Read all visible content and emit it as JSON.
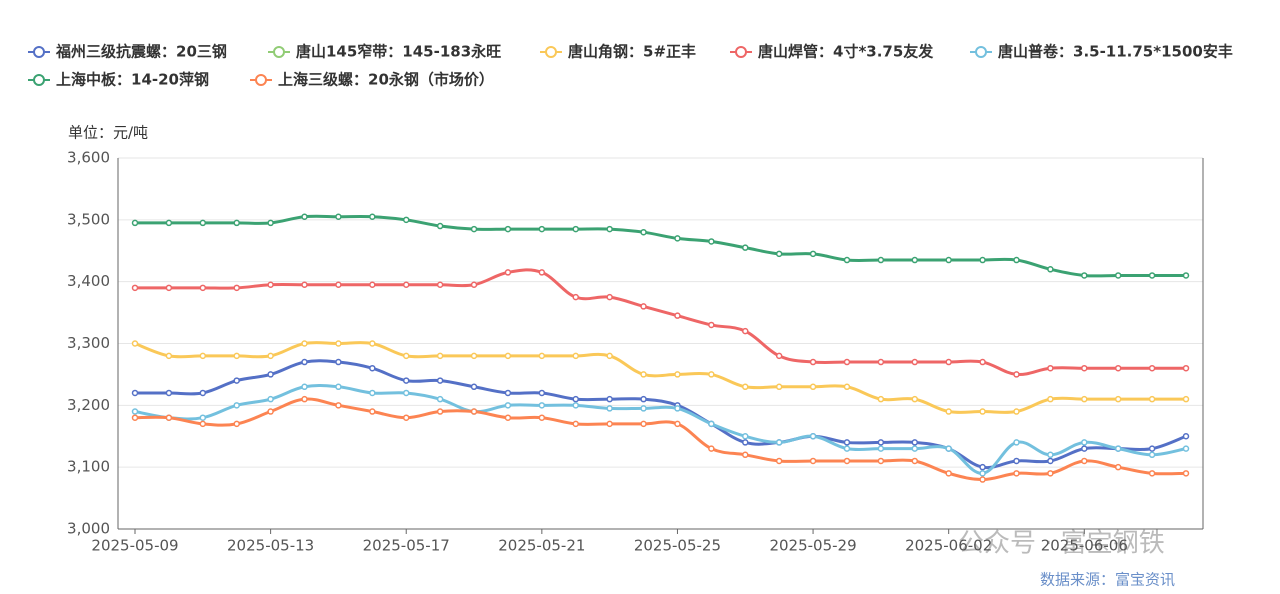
{
  "chart_data": {
    "type": "line",
    "y_axis_label": "单位：元/吨",
    "watermark": "公众号 · 富宝钢铁",
    "source": "数据来源：富宝资讯",
    "categories": [
      "2025-05-09",
      null,
      null,
      null,
      "2025-05-13",
      null,
      null,
      null,
      "2025-05-17",
      null,
      null,
      null,
      "2025-05-21",
      null,
      null,
      null,
      "2025-05-25",
      null,
      null,
      null,
      "2025-05-29",
      null,
      null,
      null,
      "2025-06-02",
      null,
      null,
      null,
      "2025-06-06",
      null,
      null,
      null
    ],
    "ylim": [
      3000,
      3600
    ],
    "yticks": [
      {
        "value": 3000,
        "label": "3,000"
      },
      {
        "value": 3100,
        "label": "3,100"
      },
      {
        "value": 3200,
        "label": "3,200"
      },
      {
        "value": 3300,
        "label": "3,300"
      },
      {
        "value": 3400,
        "label": "3,400"
      },
      {
        "value": 3500,
        "label": "3,500"
      },
      {
        "value": 3600,
        "label": "3,600"
      }
    ],
    "grid": true,
    "series": [
      {
        "name": "福州三级抗震螺：20三钢",
        "color": "#5470c6",
        "values": [
          3220,
          3220,
          3220,
          3240,
          3250,
          3270,
          3270,
          3260,
          3240,
          3240,
          3230,
          3220,
          3220,
          3210,
          3210,
          3210,
          3200,
          3170,
          3140,
          3140,
          3150,
          3140,
          3140,
          3140,
          3130,
          3100,
          3110,
          3110,
          3130,
          3130,
          3130,
          3150
        ]
      },
      {
        "name": "唐山145窄带：145-183永旺",
        "color": "#91cc75",
        "values": [
          null,
          null,
          null,
          null,
          null,
          null,
          null,
          null,
          null,
          null,
          null,
          null,
          null,
          null,
          null,
          null,
          null,
          null,
          null,
          null,
          null,
          null,
          null,
          null,
          null,
          null,
          null,
          null,
          null,
          null,
          null,
          null
        ]
      },
      {
        "name": "唐山角钢：5#正丰",
        "color": "#fac858",
        "values": [
          3300,
          3280,
          3280,
          3280,
          3280,
          3300,
          3300,
          3300,
          3280,
          3280,
          3280,
          3280,
          3280,
          3280,
          3280,
          3250,
          3250,
          3250,
          3230,
          3230,
          3230,
          3230,
          3210,
          3210,
          3190,
          3190,
          3190,
          3210,
          3210,
          3210,
          3210,
          3210
        ]
      },
      {
        "name": "唐山焊管：4寸*3.75友发",
        "color": "#ee6666",
        "values": [
          3390,
          3390,
          3390,
          3390,
          3395,
          3395,
          3395,
          3395,
          3395,
          3395,
          3395,
          3415,
          3415,
          3375,
          3375,
          3360,
          3345,
          3330,
          3320,
          3280,
          3270,
          3270,
          3270,
          3270,
          3270,
          3270,
          3250,
          3260,
          3260,
          3260,
          3260,
          3260
        ]
      },
      {
        "name": "唐山普卷：3.5-11.75*1500安丰",
        "color": "#73c0de",
        "values": [
          3190,
          3180,
          3180,
          3200,
          3210,
          3230,
          3230,
          3220,
          3220,
          3210,
          3190,
          3200,
          3200,
          3200,
          3195,
          3195,
          3195,
          3170,
          3150,
          3140,
          3150,
          3130,
          3130,
          3130,
          3130,
          3090,
          3140,
          3120,
          3140,
          3130,
          3120,
          3130
        ]
      },
      {
        "name": "上海中板：14-20萍钢",
        "color": "#3ba272",
        "values": [
          3495,
          3495,
          3495,
          3495,
          3495,
          3505,
          3505,
          3505,
          3500,
          3490,
          3485,
          3485,
          3485,
          3485,
          3485,
          3480,
          3470,
          3465,
          3455,
          3445,
          3445,
          3435,
          3435,
          3435,
          3435,
          3435,
          3435,
          3420,
          3410,
          3410,
          3410,
          3410
        ]
      },
      {
        "name": "上海三级螺：20永钢（市场价）",
        "color": "#fc8452",
        "values": [
          3180,
          3180,
          3170,
          3170,
          3190,
          3210,
          3200,
          3190,
          3180,
          3190,
          3190,
          3180,
          3180,
          3170,
          3170,
          3170,
          3170,
          3130,
          3120,
          3110,
          3110,
          3110,
          3110,
          3110,
          3090,
          3080,
          3090,
          3090,
          3110,
          3100,
          3090,
          3090
        ]
      }
    ]
  }
}
